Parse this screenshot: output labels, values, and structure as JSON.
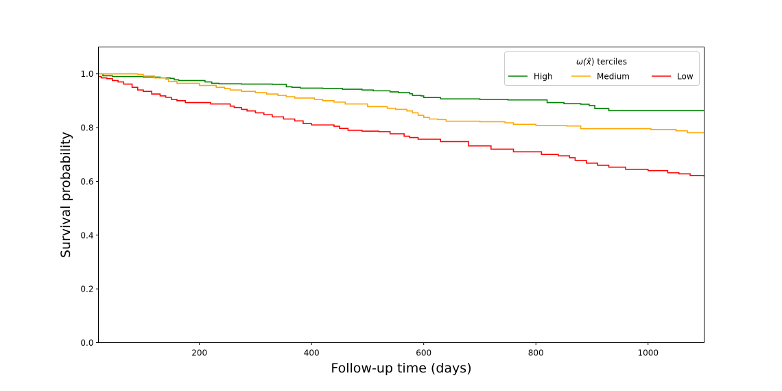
{
  "chart_data": {
    "type": "line",
    "step": true,
    "xlabel": "Follow-up time (days)",
    "ylabel": "Survival probability",
    "xlim": [
      20,
      1100
    ],
    "ylim": [
      0.0,
      1.1
    ],
    "xticks": [
      200,
      400,
      600,
      800,
      1000
    ],
    "yticks": [
      0.0,
      0.2,
      0.4,
      0.6,
      0.8,
      1.0
    ],
    "xtick_labels": [
      "200",
      "400",
      "600",
      "800",
      "1000"
    ],
    "ytick_labels": [
      "0.0",
      "0.2",
      "0.4",
      "0.6",
      "0.8",
      "1.0"
    ],
    "grid": false,
    "legend": {
      "title_prefix": "ω(",
      "title_symbol": "x̂",
      "title_suffix": ") terciles",
      "placement": "top-right",
      "columns": 3
    },
    "series": [
      {
        "name": "High",
        "color": "#008000",
        "x": [
          20,
          28,
          45,
          80,
          100,
          130,
          148,
          155,
          163,
          170,
          210,
          222,
          235,
          255,
          275,
          300,
          330,
          355,
          365,
          380,
          400,
          420,
          455,
          490,
          510,
          540,
          555,
          575,
          580,
          595,
          600,
          630,
          700,
          750,
          820,
          850,
          880,
          895,
          905,
          930,
          1000,
          1100
        ],
        "y": [
          1.0,
          0.993,
          0.99,
          0.99,
          0.988,
          0.985,
          0.983,
          0.978,
          0.975,
          0.975,
          0.97,
          0.965,
          0.963,
          0.963,
          0.962,
          0.962,
          0.961,
          0.952,
          0.95,
          0.947,
          0.947,
          0.946,
          0.943,
          0.94,
          0.937,
          0.933,
          0.93,
          0.926,
          0.92,
          0.918,
          0.912,
          0.907,
          0.905,
          0.903,
          0.893,
          0.889,
          0.887,
          0.882,
          0.871,
          0.863,
          0.863,
          0.863
        ]
      },
      {
        "name": "Medium",
        "color": "#ffa500",
        "x": [
          20,
          35,
          60,
          90,
          100,
          120,
          140,
          145,
          160,
          200,
          230,
          245,
          255,
          275,
          300,
          320,
          340,
          355,
          370,
          405,
          420,
          440,
          460,
          500,
          535,
          550,
          570,
          580,
          590,
          600,
          610,
          625,
          640,
          700,
          745,
          760,
          800,
          855,
          880,
          1005,
          1050,
          1070,
          1100
        ],
        "y": [
          1.0,
          1.0,
          1.0,
          0.998,
          0.992,
          0.985,
          0.98,
          0.972,
          0.965,
          0.957,
          0.95,
          0.945,
          0.94,
          0.935,
          0.93,
          0.925,
          0.92,
          0.915,
          0.91,
          0.905,
          0.9,
          0.895,
          0.888,
          0.878,
          0.872,
          0.868,
          0.862,
          0.855,
          0.846,
          0.838,
          0.832,
          0.83,
          0.824,
          0.822,
          0.818,
          0.812,
          0.808,
          0.806,
          0.796,
          0.793,
          0.788,
          0.781,
          0.781
        ]
      },
      {
        "name": "Low",
        "color": "#ff0000",
        "x": [
          20,
          25,
          35,
          45,
          55,
          65,
          80,
          90,
          100,
          115,
          130,
          140,
          150,
          160,
          175,
          220,
          255,
          262,
          275,
          285,
          300,
          315,
          330,
          350,
          370,
          385,
          400,
          440,
          450,
          465,
          490,
          520,
          540,
          565,
          575,
          590,
          630,
          680,
          720,
          760,
          810,
          840,
          860,
          870,
          890,
          910,
          930,
          960,
          1000,
          1035,
          1055,
          1075,
          1100
        ],
        "y": [
          0.99,
          0.985,
          0.982,
          0.975,
          0.97,
          0.962,
          0.95,
          0.94,
          0.935,
          0.925,
          0.918,
          0.913,
          0.905,
          0.9,
          0.893,
          0.888,
          0.88,
          0.875,
          0.868,
          0.862,
          0.855,
          0.848,
          0.84,
          0.832,
          0.825,
          0.815,
          0.81,
          0.805,
          0.797,
          0.79,
          0.787,
          0.785,
          0.777,
          0.768,
          0.763,
          0.757,
          0.748,
          0.732,
          0.72,
          0.71,
          0.7,
          0.695,
          0.688,
          0.678,
          0.668,
          0.66,
          0.653,
          0.645,
          0.64,
          0.632,
          0.628,
          0.622,
          0.618
        ]
      }
    ]
  }
}
